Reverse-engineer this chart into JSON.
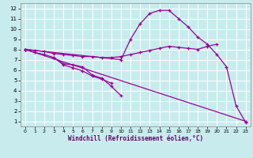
{
  "bg_color": "#c8ecee",
  "line_color": "#990099",
  "grid_color": "#ffffff",
  "xlabel": "Windchill (Refroidissement éolien,°C)",
  "xlim": [
    -0.5,
    23.5
  ],
  "ylim": [
    0.5,
    12.5
  ],
  "xticks": [
    0,
    1,
    2,
    3,
    4,
    5,
    6,
    7,
    8,
    9,
    10,
    11,
    12,
    13,
    14,
    15,
    16,
    17,
    18,
    19,
    20,
    21,
    22,
    23
  ],
  "yticks": [
    1,
    2,
    3,
    4,
    5,
    6,
    7,
    8,
    9,
    10,
    11,
    12
  ],
  "series": [
    {
      "x": [
        0,
        1,
        2,
        3,
        4,
        5,
        6,
        7,
        8,
        9
      ],
      "y": [
        8.0,
        7.7,
        7.5,
        7.2,
        6.5,
        6.2,
        5.9,
        5.4,
        5.1,
        4.7
      ]
    },
    {
      "x": [
        3,
        4,
        5,
        6,
        7,
        8,
        9,
        10
      ],
      "y": [
        7.2,
        6.6,
        6.5,
        6.3,
        5.5,
        5.2,
        4.4,
        3.5
      ]
    },
    {
      "x": [
        0,
        1,
        2,
        3,
        4,
        5,
        6,
        7,
        8,
        9,
        10,
        11,
        12,
        13,
        14,
        15,
        16,
        17,
        18,
        19,
        20
      ],
      "y": [
        8.0,
        7.9,
        7.8,
        7.6,
        7.5,
        7.4,
        7.3,
        7.3,
        7.2,
        7.2,
        7.3,
        7.5,
        7.7,
        7.9,
        8.1,
        8.3,
        8.2,
        8.1,
        8.0,
        8.3,
        8.5
      ]
    },
    {
      "x": [
        0,
        10,
        11,
        12,
        13,
        14,
        15,
        16,
        17,
        18,
        19,
        20,
        21,
        22,
        23
      ],
      "y": [
        8.0,
        7.0,
        9.0,
        10.5,
        11.5,
        11.8,
        11.8,
        11.0,
        10.2,
        9.2,
        8.5,
        7.5,
        6.3,
        2.5,
        0.9
      ]
    },
    {
      "x": [
        0,
        23
      ],
      "y": [
        8.0,
        1.0
      ]
    }
  ]
}
